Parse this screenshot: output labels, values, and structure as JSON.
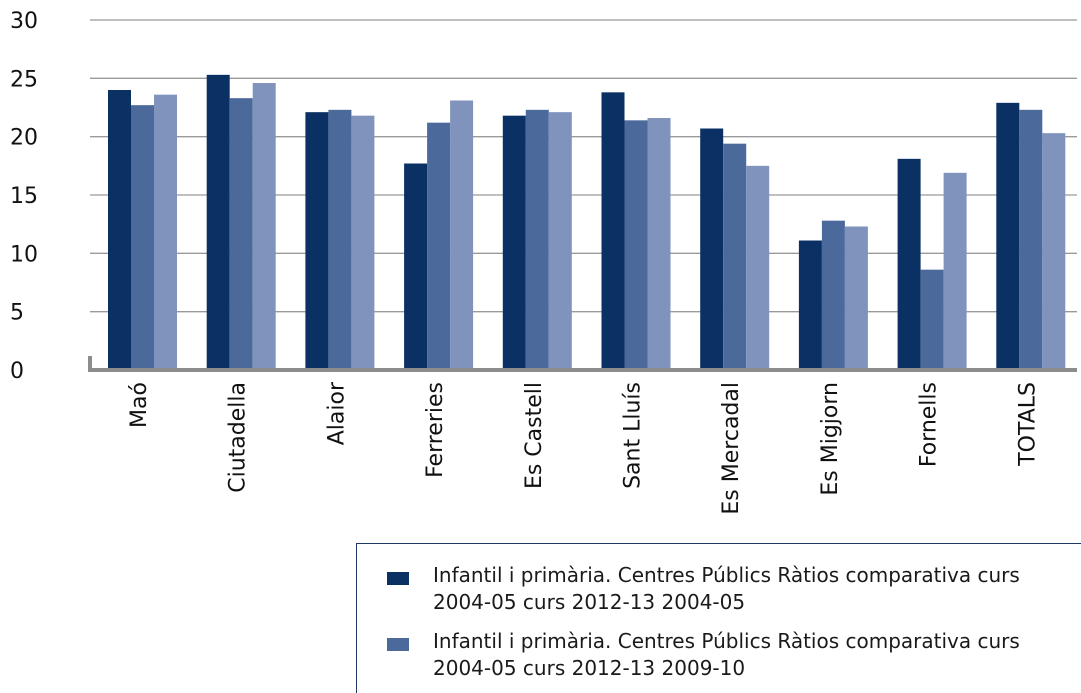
{
  "chart_data": {
    "type": "bar",
    "categories": [
      "Maó",
      "Ciutadella",
      "Alaior",
      "Ferreries",
      "Es Castell",
      "Sant Lluís",
      "Es Mercadal",
      "Es Migjorn",
      "Fornells",
      "TOTALS"
    ],
    "series": [
      {
        "name": "Infantil i primària. Centres Públics Ràtios comparativa curs 2004-05 curs 2012-13 2004-05",
        "color": "#0b3063",
        "values": [
          24.0,
          25.3,
          22.1,
          17.7,
          21.8,
          23.8,
          20.7,
          11.1,
          18.1,
          22.9
        ]
      },
      {
        "name": "Infantil i primària. Centres Públics Ràtios comparativa curs 2004-05 curs 2012-13 2009-10",
        "color": "#4b6a9b",
        "values": [
          22.7,
          23.3,
          22.3,
          21.2,
          22.3,
          21.4,
          19.4,
          12.8,
          8.6,
          22.3
        ]
      },
      {
        "color": "#7f93bc",
        "values": [
          23.6,
          24.6,
          21.8,
          23.1,
          22.1,
          21.6,
          17.5,
          12.3,
          16.9,
          20.3
        ]
      }
    ],
    "yticks": [
      "0",
      "5",
      "10",
      "15",
      "20",
      "25",
      "30"
    ],
    "ylim": [
      0,
      30
    ],
    "grid": true,
    "legend_position": "bottom-right"
  }
}
